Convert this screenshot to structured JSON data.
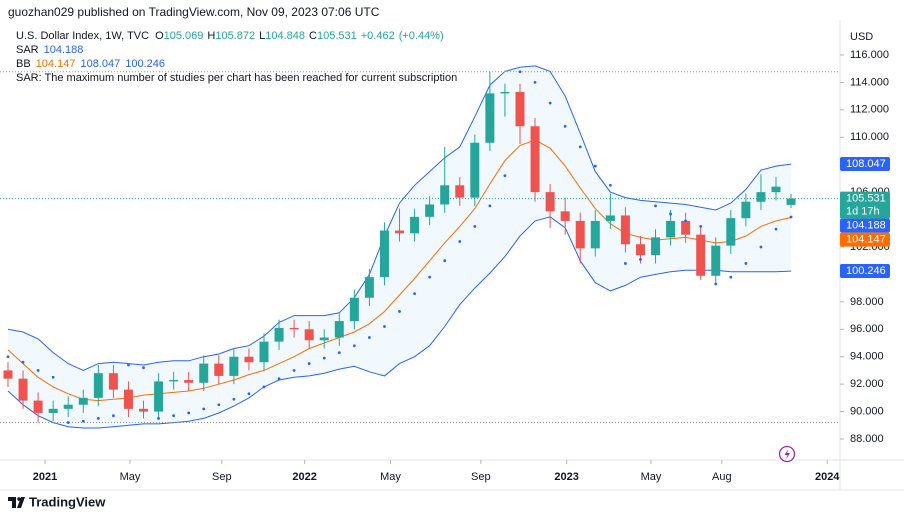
{
  "header": {
    "publisher": "guozhan029 published on TradingView.com, Nov 09, 2023 07:06 UTC"
  },
  "chart_data": {
    "type": "candlestick",
    "symbol": "U.S. Dollar Index, 1W, TVC",
    "legend_keys": [
      "O",
      "H",
      "L",
      "C"
    ],
    "change": {
      "value": 0.462,
      "label": "+0.462"
    },
    "change_pct": {
      "value": 0.44,
      "label": "(+0.44%)"
    },
    "warning": "SAR: The maximum number of studies per chart has been reached for current subscription",
    "currency": "USD",
    "countdown": "1d 17h",
    "up_color": "#26a69a",
    "down_color": "#ef5350",
    "open": [
      93.0,
      92.4,
      90.8,
      89.9,
      90.2,
      90.5,
      91.0,
      92.8,
      91.6,
      90.2,
      90.0,
      92.2,
      92.3,
      92.1,
      93.5,
      92.6,
      94.0,
      93.6,
      95.1,
      96.1,
      96.0,
      95.2,
      95.4,
      96.6,
      98.3,
      99.8,
      103.2,
      103.0,
      104.2,
      105.1,
      106.5,
      105.6,
      109.6,
      113.2,
      113.3,
      110.8,
      106.0,
      104.6,
      103.9,
      101.9,
      103.9,
      104.3,
      102.2,
      101.4,
      102.7,
      103.9,
      102.9,
      99.9,
      102.1,
      104.1,
      105.3,
      106.0,
      105.069
    ],
    "high": [
      93.6,
      93.0,
      91.4,
      90.8,
      91.1,
      91.6,
      93.4,
      93.4,
      92.2,
      90.8,
      92.8,
      92.9,
      92.9,
      94.1,
      94.1,
      94.6,
      94.6,
      95.7,
      96.7,
      96.7,
      96.6,
      96.0,
      97.2,
      98.9,
      100.4,
      103.8,
      104.8,
      104.8,
      105.7,
      109.3,
      107.1,
      110.2,
      114.78,
      113.9,
      113.9,
      111.4,
      106.6,
      105.6,
      104.5,
      104.7,
      105.9,
      104.9,
      102.8,
      103.3,
      104.7,
      104.5,
      103.5,
      102.7,
      104.7,
      105.9,
      107.3,
      107.1,
      105.872
    ],
    "low": [
      91.8,
      90.2,
      89.2,
      89.3,
      89.6,
      89.9,
      90.4,
      91.0,
      89.6,
      89.5,
      89.5,
      91.6,
      91.5,
      91.5,
      92.0,
      92.0,
      93.0,
      93.0,
      94.5,
      95.4,
      94.6,
      94.6,
      94.8,
      96.0,
      97.7,
      99.2,
      102.4,
      102.4,
      103.6,
      104.5,
      105.0,
      105.0,
      109.0,
      111.5,
      109.5,
      105.3,
      103.4,
      102.9,
      100.8,
      101.3,
      103.3,
      101.6,
      100.8,
      100.8,
      102.1,
      102.3,
      99.6,
      99.3,
      101.5,
      103.5,
      104.7,
      105.4,
      104.848
    ],
    "close": [
      92.4,
      90.8,
      89.9,
      90.2,
      90.5,
      91.0,
      92.8,
      91.6,
      90.2,
      90.0,
      92.2,
      92.3,
      92.1,
      93.5,
      92.6,
      94.0,
      93.6,
      95.1,
      96.1,
      96.0,
      95.2,
      95.4,
      96.6,
      98.3,
      99.8,
      103.2,
      103.0,
      104.2,
      105.1,
      106.5,
      105.6,
      109.6,
      113.2,
      113.3,
      110.8,
      106.0,
      104.6,
      103.9,
      101.9,
      103.9,
      104.3,
      102.2,
      101.4,
      102.7,
      103.9,
      102.9,
      99.9,
      102.1,
      104.1,
      105.3,
      106.0,
      106.4,
      105.531
    ],
    "sar": {
      "name": "SAR",
      "color": "#2962ff",
      "values": [
        94.0,
        93.6,
        93.0,
        92.5,
        89.2,
        89.3,
        89.5,
        89.7,
        93.4,
        93.2,
        89.5,
        89.7,
        89.9,
        90.2,
        90.5,
        90.9,
        91.3,
        91.8,
        92.4,
        93.0,
        93.5,
        93.9,
        94.3,
        94.8,
        95.4,
        96.2,
        97.3,
        98.6,
        99.8,
        101.0,
        102.4,
        103.5,
        105.0,
        107.2,
        114.78,
        114.0,
        112.5,
        110.8,
        109.3,
        107.9,
        106.5,
        100.8,
        101.1,
        105.0,
        104.4,
        103.9,
        103.5,
        99.3,
        99.8,
        100.8,
        102.0,
        103.3,
        104.188
      ]
    },
    "bb": {
      "name": "BB",
      "basis": {
        "color": "#ff6d00",
        "values": [
          94.5,
          93.5,
          92.5,
          91.8,
          91.3,
          90.9,
          90.8,
          90.9,
          91.0,
          91.2,
          91.3,
          91.4,
          91.5,
          91.7,
          92.0,
          92.3,
          92.7,
          93.0,
          93.5,
          94.0,
          94.6,
          95.0,
          95.4,
          95.8,
          96.4,
          97.3,
          98.5,
          99.7,
          101.0,
          102.3,
          103.5,
          104.8,
          106.6,
          108.3,
          109.4,
          109.8,
          109.2,
          107.9,
          106.3,
          104.8,
          103.7,
          103.0,
          102.7,
          102.5,
          102.6,
          102.7,
          102.5,
          102.3,
          102.4,
          102.8,
          103.5,
          103.9,
          104.147
        ]
      },
      "upper": {
        "color": "#2962ff",
        "values": [
          96.0,
          95.8,
          95.3,
          94.3,
          93.5,
          93.0,
          93.5,
          93.6,
          93.5,
          93.4,
          93.6,
          93.7,
          93.7,
          94.0,
          94.2,
          94.6,
          94.8,
          95.5,
          96.5,
          97.0,
          97.0,
          97.0,
          97.2,
          98.3,
          100.0,
          102.8,
          105.2,
          106.5,
          107.5,
          108.5,
          109.3,
          111.5,
          113.8,
          114.8,
          115.1,
          115.2,
          114.8,
          113.0,
          110.3,
          107.5,
          106.0,
          105.6,
          105.4,
          105.3,
          105.2,
          105.1,
          104.9,
          104.7,
          105.2,
          106.2,
          107.6,
          107.9,
          108.047
        ]
      },
      "lower": {
        "color": "#2962ff",
        "values": [
          91.5,
          90.5,
          89.7,
          89.2,
          88.9,
          88.8,
          88.8,
          88.9,
          89.0,
          89.1,
          89.1,
          89.2,
          89.3,
          89.5,
          89.9,
          90.4,
          91.0,
          91.8,
          92.3,
          92.5,
          92.6,
          92.8,
          93.1,
          93.3,
          92.9,
          92.6,
          93.5,
          94.0,
          94.8,
          96.2,
          97.8,
          99.0,
          100.1,
          101.3,
          102.8,
          103.9,
          104.2,
          103.4,
          101.0,
          99.4,
          98.8,
          99.2,
          99.8,
          100.0,
          100.2,
          100.3,
          100.3,
          100.3,
          100.2,
          100.2,
          100.2,
          100.2,
          100.246
        ]
      }
    },
    "ylim": [
      86.47,
      118.55
    ],
    "yticks": [
      {
        "value": 88,
        "label": "88.000"
      },
      {
        "value": 90,
        "label": "90.000"
      },
      {
        "value": 92,
        "label": "92.000"
      },
      {
        "value": 94,
        "label": "94.000"
      },
      {
        "value": 96,
        "label": "96.000"
      },
      {
        "value": 98,
        "label": "98.000"
      },
      {
        "value": 100,
        "label": "100.000"
      },
      {
        "value": 102,
        "label": "102.000"
      },
      {
        "value": 104,
        "label": "104.000"
      },
      {
        "value": 106,
        "label": "106.000"
      },
      {
        "value": 108,
        "label": "108.000"
      },
      {
        "value": 110,
        "label": "110.000"
      },
      {
        "value": 112,
        "label": "112.000"
      },
      {
        "value": 114,
        "label": "114.000"
      },
      {
        "value": 116,
        "label": "116.000"
      }
    ],
    "xlim": [
      -0.53,
      55.25
    ],
    "xticks": [
      {
        "value": 2.46,
        "label": "2021"
      },
      {
        "value": 8.1,
        "label": "May"
      },
      {
        "value": 14.2,
        "label": "Sep"
      },
      {
        "value": 19.7,
        "label": "2022"
      },
      {
        "value": 25.4,
        "label": "May"
      },
      {
        "value": 31.4,
        "label": "Sep"
      },
      {
        "value": 37.1,
        "label": "2023"
      },
      {
        "value": 42.7,
        "label": "May"
      },
      {
        "value": 47.4,
        "label": "Aug"
      },
      {
        "value": 54.4,
        "label": "2024"
      }
    ]
  },
  "footer": {
    "brand": "TradingView"
  }
}
